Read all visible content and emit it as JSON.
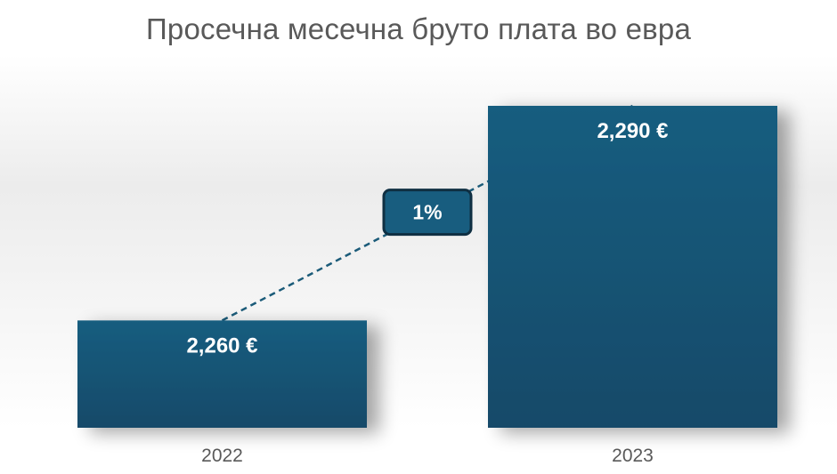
{
  "chart_data": {
    "type": "bar",
    "title": "Просечна месечна бруто плата во евра",
    "categories": [
      "2022",
      "2023"
    ],
    "values": [
      2260,
      2290
    ],
    "value_labels": [
      "2,260 €",
      "2,290 €"
    ],
    "change_label": "1%",
    "bar_color": "#185d7f",
    "bar_color_dark": "#154a69",
    "connector_color": "#1b5b79",
    "text_color": "#595959",
    "legend": "none",
    "grid": false
  }
}
